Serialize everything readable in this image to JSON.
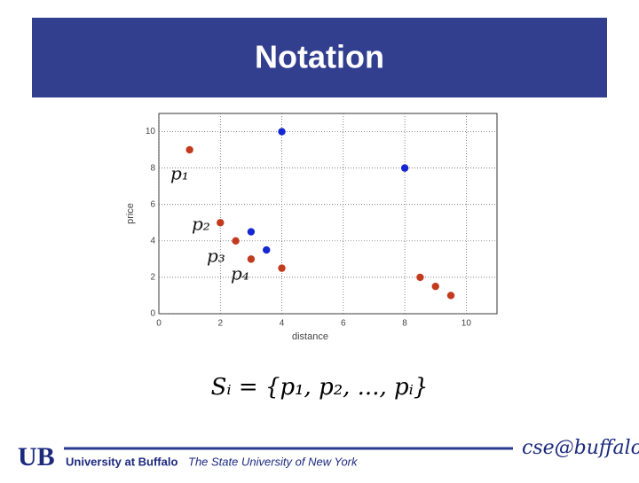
{
  "slide_title": "Notation",
  "chart_data": {
    "type": "scatter",
    "x_label": "distance",
    "y_label": "price",
    "xlim": [
      0,
      11
    ],
    "ylim": [
      0,
      11
    ],
    "xticks": [
      0,
      2,
      4,
      6,
      8,
      10
    ],
    "yticks": [
      0,
      2,
      4,
      6,
      8,
      10
    ],
    "grid": true,
    "series": [
      {
        "color": "#c23b1e",
        "x": [
          1,
          2,
          2.5,
          3,
          4,
          8.5,
          9,
          9.5
        ],
        "values": [
          9,
          5,
          4,
          3,
          2.5,
          2,
          1.5,
          1
        ]
      },
      {
        "color": "#1428d2",
        "x": [
          4,
          8,
          3,
          3.5
        ],
        "values": [
          10,
          8,
          4.5,
          3.5
        ]
      }
    ],
    "annotations": [
      "p₁",
      "p₂",
      "p₃",
      "p₄"
    ]
  },
  "formula": "Sᵢ = {p₁, p₂, ..., pᵢ}",
  "footer": {
    "logo": "UB",
    "university": "University at Buffalo",
    "subtitle": "The State University of New York",
    "brand": "cse@buffalo"
  }
}
